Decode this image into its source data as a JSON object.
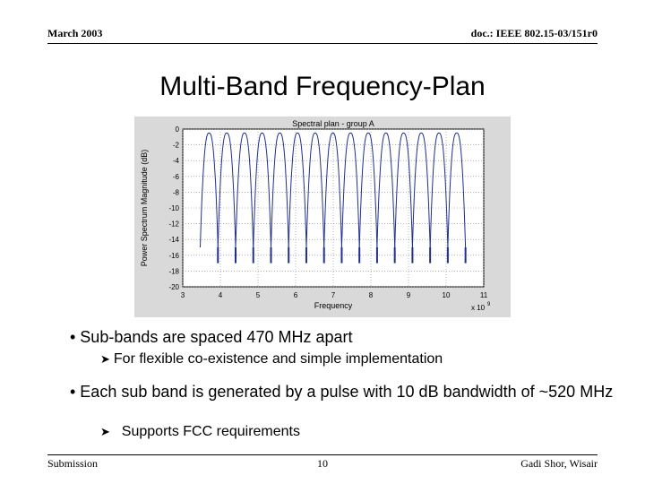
{
  "header": {
    "date": "March 2003",
    "doc_id": "doc.: IEEE 802.15-03/151r0"
  },
  "slide": {
    "title": "Multi-Band Frequency-Plan",
    "bullets": [
      {
        "text": "• Sub-bands are spaced 470 MHz apart",
        "sub": "For flexible co-existence and simple implementation"
      },
      {
        "text": "• Each sub band is generated by a pulse with 10 dB bandwidth of ~520 MHz",
        "sub": "Supports FCC requirements"
      }
    ],
    "sub_bullet_icon": "arrow-right-icon"
  },
  "footer": {
    "left": "Submission",
    "page": "10",
    "right": "Gadi Shor, Wisair"
  },
  "chart_data": {
    "type": "line",
    "title": "Spectral plan - group A",
    "xlabel": "Frequency",
    "ylabel": "Power Spectrum Magnitude (dB)",
    "x_exponent_label": "x 10",
    "x_exponent_power": "9",
    "xlim": [
      3,
      11
    ],
    "ylim": [
      -20,
      0
    ],
    "xticks": [
      "3",
      "4",
      "5",
      "6",
      "7",
      "8",
      "9",
      "10",
      "11"
    ],
    "yticks": [
      "0",
      "-2",
      "-4",
      "-6",
      "-8",
      "-10",
      "-12",
      "-14",
      "-16",
      "-18",
      "-20"
    ],
    "grid": true,
    "colors": {
      "line": "#1f2f8f",
      "axes_bg": "#ffffff",
      "figure_bg": "#d9d9d9"
    },
    "band_spacing_ghz": 0.47,
    "band_centers_ghz": [
      3.7,
      4.17,
      4.64,
      5.11,
      5.58,
      6.05,
      6.52,
      6.99,
      7.46,
      7.93,
      8.4,
      8.87,
      9.34,
      9.81,
      10.28
    ],
    "band_peak_db": [
      -0.5,
      -0.5,
      -0.5,
      -0.5,
      -0.5,
      -0.5,
      -0.5,
      -0.5,
      -0.5,
      -0.5,
      -0.5,
      -0.5,
      -0.5,
      -0.5,
      -0.5
    ],
    "null_depth_db": -15
  }
}
